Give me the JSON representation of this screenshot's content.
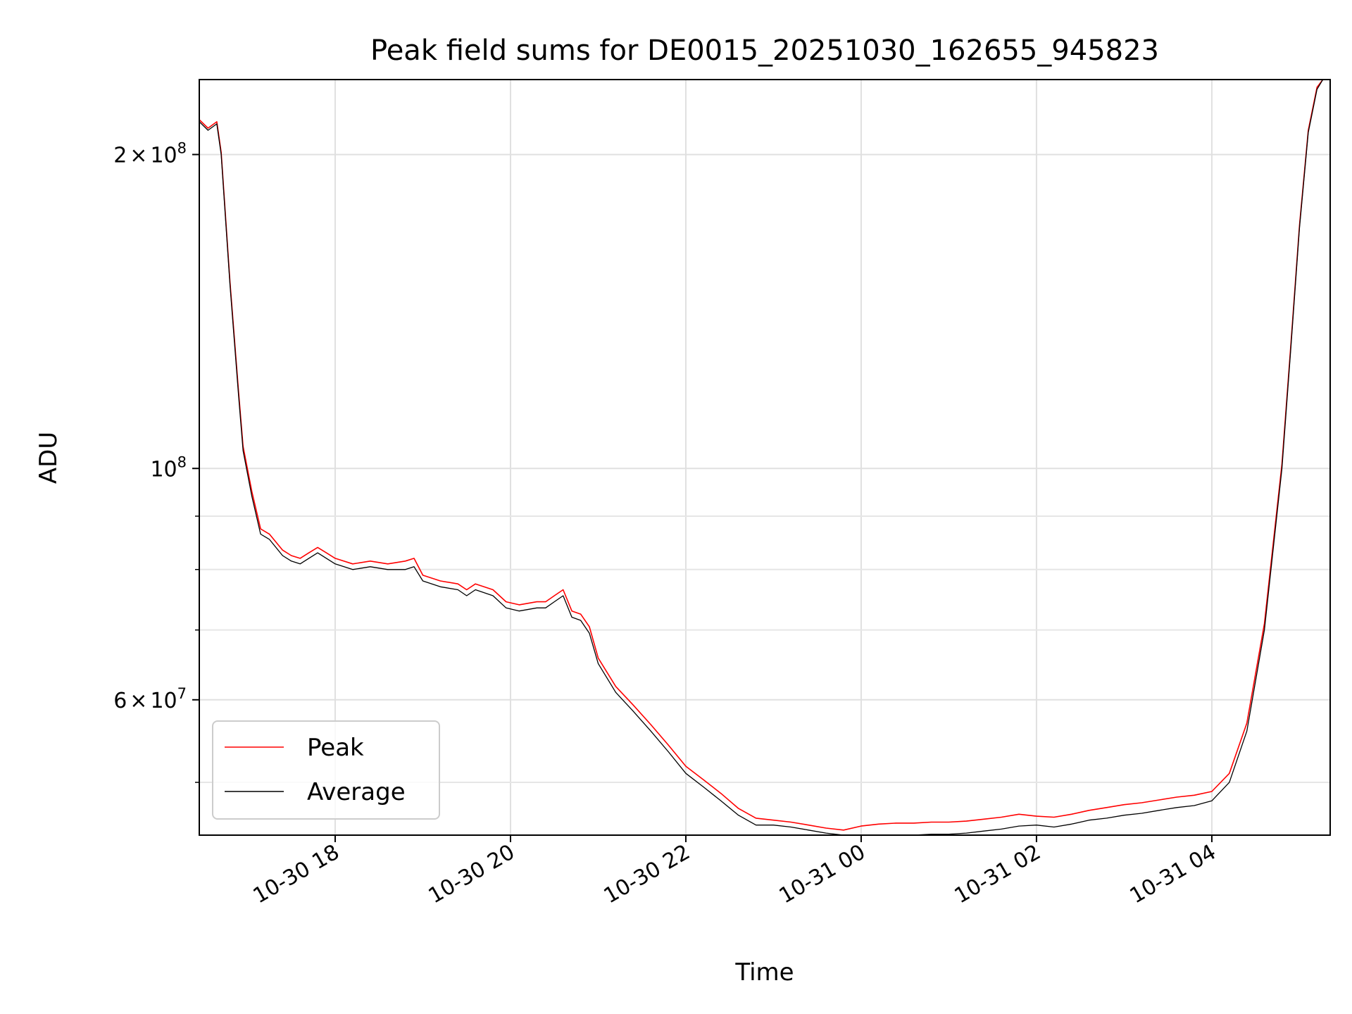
{
  "chart_data": {
    "type": "line",
    "title": "Peak field sums for DE0015_20251030_162655_945823",
    "xlabel": "Time",
    "ylabel": "ADU",
    "xlim": [
      "2025-10-30 16:27",
      "2025-10-31 05:21"
    ],
    "ylim": [
      44500000,
      236000000
    ],
    "yscale": "log",
    "grid": true,
    "legend_position": "lower-left",
    "x_ticks": [
      {
        "time": "2025-10-30 18:00",
        "label": "10-30 18"
      },
      {
        "time": "2025-10-30 20:00",
        "label": "10-30 20"
      },
      {
        "time": "2025-10-30 22:00",
        "label": "10-30 22"
      },
      {
        "time": "2025-10-31 00:00",
        "label": "10-31 00"
      },
      {
        "time": "2025-10-31 02:00",
        "label": "10-31 02"
      },
      {
        "time": "2025-10-31 04:00",
        "label": "10-31 04"
      }
    ],
    "y_ticks": [
      {
        "value": 60000000,
        "mantissa": "6",
        "exponent": "7"
      },
      {
        "value": 100000000,
        "mantissa": "",
        "exponent": "8"
      },
      {
        "value": 200000000,
        "mantissa": "2",
        "exponent": "8"
      }
    ],
    "y_minor_ticks": [
      50000000,
      70000000,
      80000000,
      90000000
    ],
    "tick_prefix": "10",
    "times_sign": "×",
    "series": [
      {
        "name": "Average",
        "color": "#000000",
        "x": [
          "2025-10-30 16:27",
          "2025-10-30 16:33",
          "2025-10-30 16:39",
          "2025-10-30 16:42",
          "2025-10-30 16:48",
          "2025-10-30 16:54",
          "2025-10-30 16:57",
          "2025-10-30 17:03",
          "2025-10-30 17:09",
          "2025-10-30 17:15",
          "2025-10-30 17:24",
          "2025-10-30 17:30",
          "2025-10-30 17:36",
          "2025-10-30 17:42",
          "2025-10-30 17:48",
          "2025-10-30 17:54",
          "2025-10-30 18:00",
          "2025-10-30 18:12",
          "2025-10-30 18:24",
          "2025-10-30 18:36",
          "2025-10-30 18:48",
          "2025-10-30 18:54",
          "2025-10-30 19:00",
          "2025-10-30 19:12",
          "2025-10-30 19:24",
          "2025-10-30 19:30",
          "2025-10-30 19:36",
          "2025-10-30 19:48",
          "2025-10-30 19:57",
          "2025-10-30 20:06",
          "2025-10-30 20:18",
          "2025-10-30 20:24",
          "2025-10-30 20:30",
          "2025-10-30 20:36",
          "2025-10-30 20:42",
          "2025-10-30 20:48",
          "2025-10-30 20:54",
          "2025-10-30 21:00",
          "2025-10-30 21:12",
          "2025-10-30 21:24",
          "2025-10-30 21:36",
          "2025-10-30 21:48",
          "2025-10-30 22:00",
          "2025-10-30 22:12",
          "2025-10-30 22:24",
          "2025-10-30 22:36",
          "2025-10-30 22:48",
          "2025-10-30 23:00",
          "2025-10-30 23:12",
          "2025-10-30 23:24",
          "2025-10-30 23:36",
          "2025-10-30 23:48",
          "2025-10-31 00:00",
          "2025-10-31 00:12",
          "2025-10-31 00:24",
          "2025-10-31 00:36",
          "2025-10-31 00:48",
          "2025-10-31 01:00",
          "2025-10-31 01:12",
          "2025-10-31 01:24",
          "2025-10-31 01:36",
          "2025-10-31 01:48",
          "2025-10-31 02:00",
          "2025-10-31 02:12",
          "2025-10-31 02:24",
          "2025-10-31 02:36",
          "2025-10-31 02:48",
          "2025-10-31 03:00",
          "2025-10-31 03:12",
          "2025-10-31 03:24",
          "2025-10-31 03:36",
          "2025-10-31 03:48",
          "2025-10-31 04:00",
          "2025-10-31 04:12",
          "2025-10-31 04:24",
          "2025-10-31 04:36",
          "2025-10-31 04:48",
          "2025-10-31 04:54",
          "2025-10-31 05:00",
          "2025-10-31 05:06",
          "2025-10-31 05:12",
          "2025-10-31 05:16",
          "2025-10-31 05:21"
        ],
        "values": [
          215000000,
          211000000,
          214000000,
          200000000,
          150000000,
          117000000,
          104000000,
          94000000,
          86500000,
          85500000,
          82500000,
          81500000,
          81000000,
          82000000,
          83000000,
          82000000,
          81000000,
          80000000,
          80500000,
          80000000,
          80000000,
          80500000,
          78000000,
          77000000,
          76500000,
          75500000,
          76500000,
          75500000,
          73500000,
          73000000,
          73500000,
          73500000,
          74500000,
          75500000,
          72000000,
          71500000,
          69500000,
          65000000,
          61000000,
          58500000,
          56000000,
          53500000,
          51000000,
          49500000,
          48000000,
          46500000,
          45500000,
          45500000,
          45300000,
          45000000,
          44700000,
          44500000,
          44400000,
          44400000,
          44500000,
          44500000,
          44600000,
          44600000,
          44700000,
          44900000,
          45100000,
          45400000,
          45500000,
          45300000,
          45600000,
          46000000,
          46200000,
          46500000,
          46700000,
          47000000,
          47300000,
          47500000,
          48000000,
          50000000,
          56000000,
          70000000,
          100000000,
          130000000,
          170000000,
          210000000,
          231000000,
          236000000,
          236000000
        ]
      },
      {
        "name": "Peak",
        "color": "#ff0000",
        "x": [
          "2025-10-30 16:27",
          "2025-10-30 16:33",
          "2025-10-30 16:39",
          "2025-10-30 16:42",
          "2025-10-30 16:48",
          "2025-10-30 16:54",
          "2025-10-30 16:57",
          "2025-10-30 17:03",
          "2025-10-30 17:09",
          "2025-10-30 17:15",
          "2025-10-30 17:24",
          "2025-10-30 17:30",
          "2025-10-30 17:36",
          "2025-10-30 17:42",
          "2025-10-30 17:48",
          "2025-10-30 17:54",
          "2025-10-30 18:00",
          "2025-10-30 18:12",
          "2025-10-30 18:24",
          "2025-10-30 18:36",
          "2025-10-30 18:48",
          "2025-10-30 18:54",
          "2025-10-30 19:00",
          "2025-10-30 19:12",
          "2025-10-30 19:24",
          "2025-10-30 19:30",
          "2025-10-30 19:36",
          "2025-10-30 19:48",
          "2025-10-30 19:57",
          "2025-10-30 20:06",
          "2025-10-30 20:18",
          "2025-10-30 20:24",
          "2025-10-30 20:30",
          "2025-10-30 20:36",
          "2025-10-30 20:42",
          "2025-10-30 20:48",
          "2025-10-30 20:54",
          "2025-10-30 21:00",
          "2025-10-30 21:12",
          "2025-10-30 21:24",
          "2025-10-30 21:36",
          "2025-10-30 21:48",
          "2025-10-30 22:00",
          "2025-10-30 22:12",
          "2025-10-30 22:24",
          "2025-10-30 22:36",
          "2025-10-30 22:48",
          "2025-10-30 23:00",
          "2025-10-30 23:12",
          "2025-10-30 23:24",
          "2025-10-30 23:36",
          "2025-10-30 23:48",
          "2025-10-31 00:00",
          "2025-10-31 00:12",
          "2025-10-31 00:24",
          "2025-10-31 00:36",
          "2025-10-31 00:48",
          "2025-10-31 01:00",
          "2025-10-31 01:12",
          "2025-10-31 01:24",
          "2025-10-31 01:36",
          "2025-10-31 01:48",
          "2025-10-31 02:00",
          "2025-10-31 02:12",
          "2025-10-31 02:24",
          "2025-10-31 02:36",
          "2025-10-31 02:48",
          "2025-10-31 03:00",
          "2025-10-31 03:12",
          "2025-10-31 03:24",
          "2025-10-31 03:36",
          "2025-10-31 03:48",
          "2025-10-31 04:00",
          "2025-10-31 04:12",
          "2025-10-31 04:24",
          "2025-10-31 04:36",
          "2025-10-31 04:48",
          "2025-10-31 04:54",
          "2025-10-31 05:00",
          "2025-10-31 05:06",
          "2025-10-31 05:12",
          "2025-10-31 05:16",
          "2025-10-31 05:21"
        ],
        "values": [
          216000000,
          212000000,
          215000000,
          201000000,
          151000000,
          118000000,
          105000000,
          95000000,
          87500000,
          86500000,
          83500000,
          82500000,
          82000000,
          83000000,
          84000000,
          83000000,
          82000000,
          81000000,
          81500000,
          81000000,
          81500000,
          82000000,
          79000000,
          78000000,
          77500000,
          76500000,
          77500000,
          76500000,
          74500000,
          74000000,
          74500000,
          74500000,
          75500000,
          76500000,
          73000000,
          72500000,
          70500000,
          65800000,
          61800000,
          59300000,
          56800000,
          54300000,
          51800000,
          50300000,
          48800000,
          47200000,
          46200000,
          46000000,
          45800000,
          45500000,
          45200000,
          45000000,
          45400000,
          45600000,
          45700000,
          45700000,
          45800000,
          45800000,
          45900000,
          46100000,
          46300000,
          46600000,
          46400000,
          46300000,
          46600000,
          47000000,
          47300000,
          47600000,
          47800000,
          48100000,
          48400000,
          48600000,
          49000000,
          51000000,
          57000000,
          71000000,
          101000000,
          131000000,
          171000000,
          211000000,
          232000000,
          236000000,
          236000000
        ]
      }
    ]
  }
}
